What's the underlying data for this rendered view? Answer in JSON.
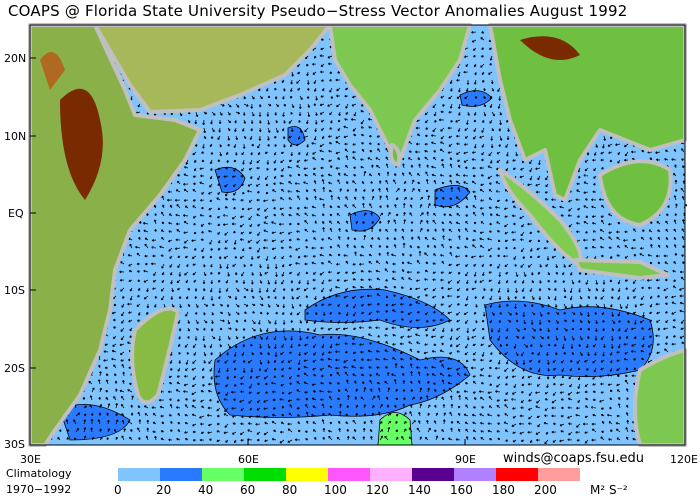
{
  "title": "COAPS @ Florida State University Pseudo−Stress Vector Anomalies  August 1992",
  "lat_labels": [
    "20N",
    "10N",
    "EQ",
    "10S",
    "20S",
    "30S"
  ],
  "lon_labels": [
    "30E",
    "60E",
    "90E",
    "120E"
  ],
  "credit": "winds@coaps.fsu.edu",
  "climatology": [
    "Climatology",
    "1970−1992"
  ],
  "legend": {
    "colors": [
      "#80c4ff",
      "#2a7aff",
      "#66ff66",
      "#00dd00",
      "#ffff00",
      "#ff55ff",
      "#ffb0ff",
      "#5a0090",
      "#b080ff",
      "#ff0000",
      "#ff9c9c"
    ],
    "ticks": [
      "0",
      "20",
      "40",
      "60",
      "80",
      "100",
      "120",
      "140",
      "160",
      "180",
      "200"
    ],
    "unit": "M² S⁻²"
  },
  "colors": {
    "ocean": "#80c4ff",
    "anomaly_20_40": "#2a7aff",
    "coast": "#c0c0c0"
  }
}
